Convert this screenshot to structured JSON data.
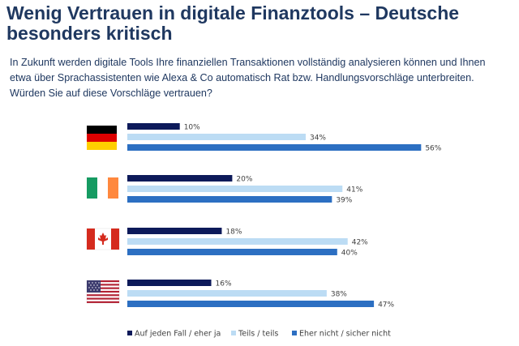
{
  "title": "Wenig Vertrauen in digitale Finanztools – Deutsche besonders kritisch",
  "subtitle": "In Zukunft werden digitale Tools Ihre finanziellen Transaktionen vollständig analysieren können und Ihnen etwa über Sprachassistenten wie Alexa & Co automatisch Rat bzw. Handlungsvorschläge unterbreiten. Würden Sie auf diese Vorschläge vertrauen?",
  "colors": {
    "dark": "#0d1a5a",
    "light": "#bcdcf4",
    "mid": "#2c6fc2",
    "title": "#1f3860"
  },
  "chart_data": {
    "type": "bar",
    "orientation": "horizontal",
    "categories": [
      "germany-flag",
      "ireland-flag",
      "canada-flag",
      "usa-flag"
    ],
    "series": [
      {
        "name": "Auf jeden Fall / eher ja",
        "values": [
          10,
          20,
          18,
          16
        ],
        "labels": [
          "10%",
          "20%",
          "18%",
          "16%"
        ],
        "color": "#0d1a5a"
      },
      {
        "name": "Teils / teils",
        "values": [
          34,
          41,
          42,
          38
        ],
        "labels": [
          "34%",
          "41%",
          "42%",
          "38%"
        ],
        "color": "#bcdcf4"
      },
      {
        "name": "Eher nicht / sicher nicht",
        "values": [
          56,
          39,
          40,
          47
        ],
        "labels": [
          "56%",
          "39%",
          "40%",
          "47%"
        ],
        "color": "#2c6fc2"
      }
    ],
    "unit": "%",
    "xlim": [
      0,
      60
    ],
    "legend_position": "bottom",
    "grid": false
  }
}
